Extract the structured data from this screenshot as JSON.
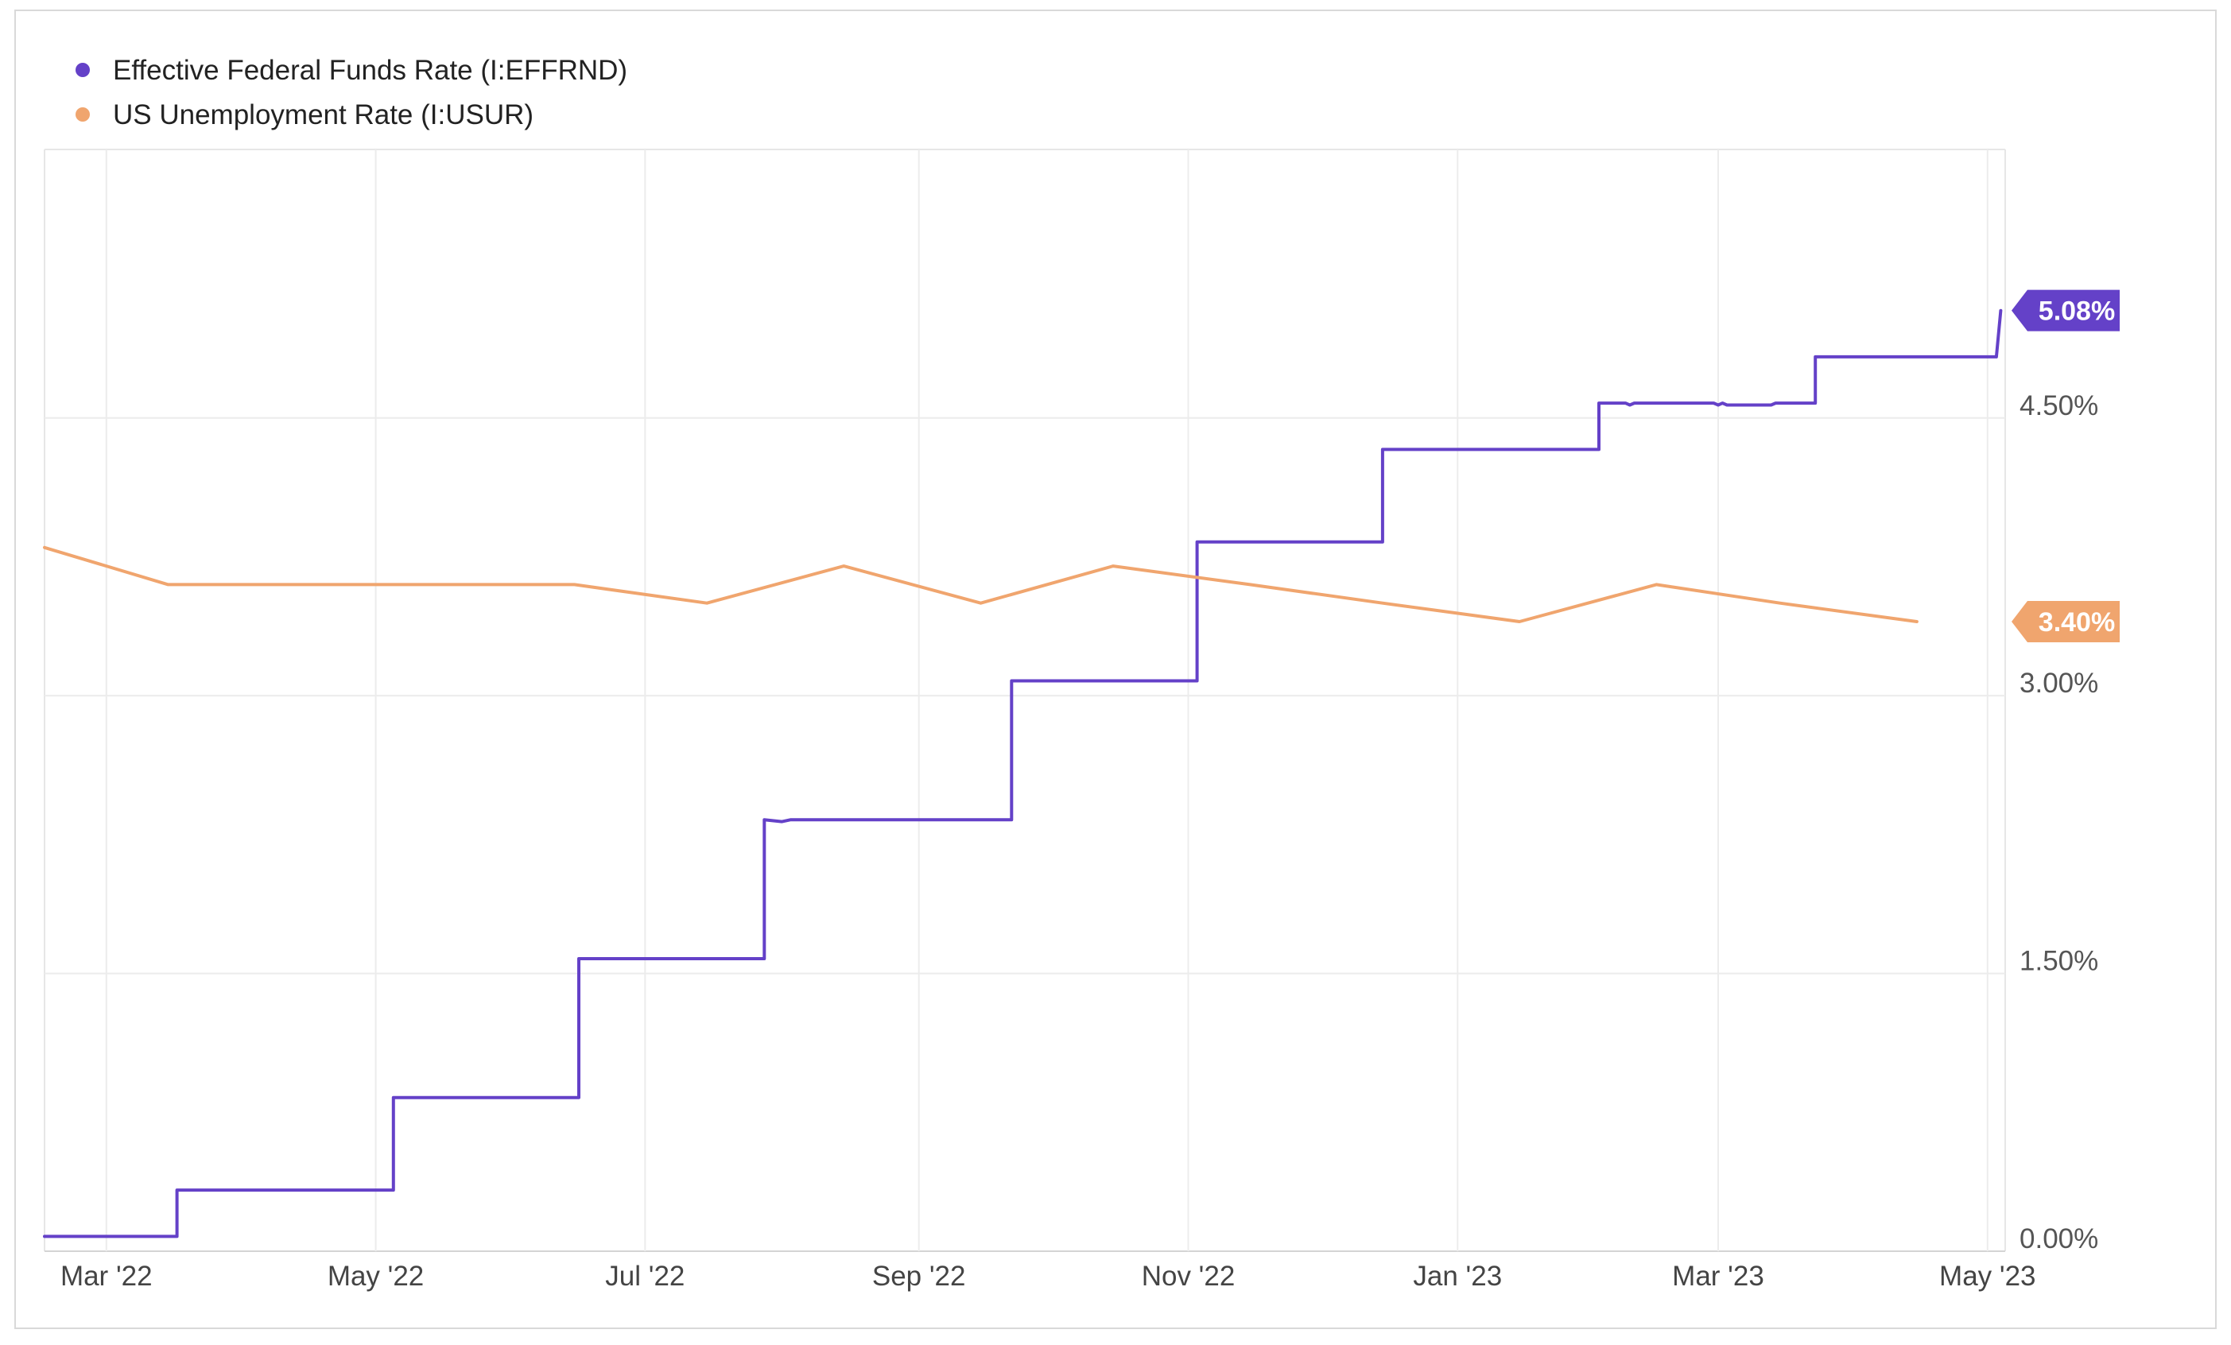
{
  "chart_data": {
    "type": "line",
    "x_axis": {
      "type": "date",
      "range": [
        "2022-02-15",
        "2023-05-05"
      ],
      "tick_labels": [
        {
          "date": "2022-03-01",
          "label": "Mar '22"
        },
        {
          "date": "2022-05-01",
          "label": "May '22"
        },
        {
          "date": "2022-07-01",
          "label": "Jul '22"
        },
        {
          "date": "2022-09-01",
          "label": "Sep '22"
        },
        {
          "date": "2022-11-01",
          "label": "Nov '22"
        },
        {
          "date": "2023-01-01",
          "label": "Jan '23"
        },
        {
          "date": "2023-03-01",
          "label": "Mar '23"
        },
        {
          "date": "2023-05-01",
          "label": "May '23"
        }
      ]
    },
    "y_axis": {
      "position": "right",
      "range": [
        0,
        5.95
      ],
      "ticks": [
        {
          "value": 0,
          "label": "0.00%"
        },
        {
          "value": 1.5,
          "label": "1.50%"
        },
        {
          "value": 3.0,
          "label": "3.00%"
        },
        {
          "value": 4.5,
          "label": "4.50%"
        }
      ]
    },
    "grid": true,
    "legend": "top-left",
    "series": [
      {
        "name": "Effective Federal Funds Rate (I:EFFRND)",
        "color": "#6441c8",
        "style": "step",
        "last_value_label": "5.08%",
        "points": [
          [
            "2022-02-15",
            0.08
          ],
          [
            "2022-03-17",
            0.08
          ],
          [
            "2022-03-17",
            0.33
          ],
          [
            "2022-05-05",
            0.33
          ],
          [
            "2022-05-05",
            0.83
          ],
          [
            "2022-06-16",
            0.83
          ],
          [
            "2022-06-16",
            1.58
          ],
          [
            "2022-07-28",
            1.58
          ],
          [
            "2022-07-28",
            2.33
          ],
          [
            "2022-08-01",
            2.32
          ],
          [
            "2022-08-03",
            2.33
          ],
          [
            "2022-09-22",
            2.33
          ],
          [
            "2022-09-22",
            3.08
          ],
          [
            "2022-11-03",
            3.08
          ],
          [
            "2022-11-03",
            3.83
          ],
          [
            "2022-12-15",
            3.83
          ],
          [
            "2022-12-15",
            4.33
          ],
          [
            "2023-02-02",
            4.33
          ],
          [
            "2023-02-02",
            4.58
          ],
          [
            "2023-02-08",
            4.58
          ],
          [
            "2023-02-09",
            4.57
          ],
          [
            "2023-02-10",
            4.58
          ],
          [
            "2023-02-28",
            4.58
          ],
          [
            "2023-03-01",
            4.57
          ],
          [
            "2023-03-02",
            4.58
          ],
          [
            "2023-03-03",
            4.57
          ],
          [
            "2023-03-13",
            4.57
          ],
          [
            "2023-03-14",
            4.58
          ],
          [
            "2023-03-23",
            4.58
          ],
          [
            "2023-03-23",
            4.83
          ],
          [
            "2023-05-03",
            4.83
          ],
          [
            "2023-05-04",
            5.08
          ]
        ]
      },
      {
        "name": "US Unemployment Rate (I:USUR)",
        "color": "#f0a56e",
        "style": "line",
        "last_value_label": "3.40%",
        "points": [
          [
            "2022-02-15",
            3.8
          ],
          [
            "2022-03-15",
            3.6
          ],
          [
            "2022-04-15",
            3.6
          ],
          [
            "2022-05-15",
            3.6
          ],
          [
            "2022-06-15",
            3.6
          ],
          [
            "2022-07-15",
            3.5
          ],
          [
            "2022-08-15",
            3.7
          ],
          [
            "2022-09-15",
            3.5
          ],
          [
            "2022-10-15",
            3.7
          ],
          [
            "2022-11-15",
            3.6
          ],
          [
            "2022-12-15",
            3.5
          ],
          [
            "2023-01-15",
            3.4
          ],
          [
            "2023-02-15",
            3.6
          ],
          [
            "2023-03-15",
            3.5
          ],
          [
            "2023-04-15",
            3.4
          ]
        ]
      }
    ]
  }
}
